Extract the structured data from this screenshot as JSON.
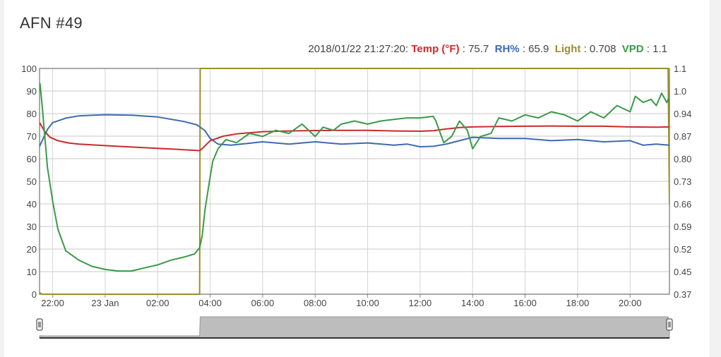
{
  "header": {
    "title": "AFN #49"
  },
  "legend": {
    "timestamp": "2018/01/22 21:27:20:",
    "items": [
      {
        "label": "Temp (°F)",
        "value": "75.7",
        "color": "#cc2a2a"
      },
      {
        "label": "RH%",
        "value": "65.9",
        "color": "#3e6ab0"
      },
      {
        "label": "Light",
        "value": "0.708",
        "color": "#9a8f2a"
      },
      {
        "label": "VPD",
        "value": "1.1",
        "color": "#3a9a48"
      }
    ]
  },
  "chart_data": {
    "type": "line",
    "x_axis": {
      "unit": "hours (22 Jan 21:30 to 23 Jan 21:30)",
      "range": [
        21.5,
        45.5
      ],
      "ticks": [
        {
          "value": 22,
          "label": "22:00"
        },
        {
          "value": 24,
          "label": "23 Jan"
        },
        {
          "value": 26,
          "label": "02:00"
        },
        {
          "value": 28,
          "label": "04:00"
        },
        {
          "value": 30,
          "label": "06:00"
        },
        {
          "value": 32,
          "label": "08:00"
        },
        {
          "value": 34,
          "label": "10:00"
        },
        {
          "value": 36,
          "label": "12:00"
        },
        {
          "value": 38,
          "label": "14:00"
        },
        {
          "value": 40,
          "label": "16:00"
        },
        {
          "value": 42,
          "label": "18:00"
        },
        {
          "value": 44,
          "label": "20:00"
        }
      ]
    },
    "y_left": {
      "range": [
        0,
        100
      ],
      "ticks": [
        "0",
        "10",
        "20",
        "30",
        "40",
        "50",
        "60",
        "70",
        "80",
        "90",
        "100"
      ]
    },
    "y_right": {
      "range": [
        0.37,
        1.1
      ],
      "ticks": [
        "0.37",
        "0.45",
        "0.52",
        "0.59",
        "0.66",
        "0.73",
        "0.80",
        "0.87",
        "0.94",
        "1.0",
        "1.1"
      ]
    },
    "grid": true,
    "series": [
      {
        "name": "Temp (°F)",
        "color": "#cc2a2a",
        "axis": "left",
        "x": [
          21.5,
          21.55,
          21.7,
          21.9,
          22.2,
          22.6,
          23.0,
          24.0,
          25.0,
          26.0,
          27.0,
          27.6,
          27.7,
          28.0,
          28.5,
          29.0,
          30.0,
          31.0,
          32.0,
          33.0,
          34.0,
          35.0,
          36.0,
          36.5,
          37.0,
          37.5,
          38.0,
          39.0,
          40.0,
          41.0,
          42.0,
          43.0,
          44.0,
          45.0,
          45.5
        ],
        "y": [
          76,
          75,
          72,
          69.5,
          68,
          67,
          66.5,
          65.8,
          65.2,
          64.6,
          64,
          63.6,
          64.5,
          68,
          70,
          71,
          72,
          72.3,
          72.5,
          72.6,
          72.6,
          72.3,
          72.2,
          72.4,
          73.2,
          73.8,
          74.1,
          74.3,
          74.4,
          74.5,
          74.4,
          74.4,
          74.1,
          74,
          74.1
        ]
      },
      {
        "name": "RH%",
        "color": "#3e6ab0",
        "axis": "left",
        "x": [
          21.5,
          21.6,
          21.8,
          22.0,
          22.5,
          23.0,
          24.0,
          25.0,
          26.0,
          27.0,
          27.5,
          27.8,
          28.0,
          28.3,
          28.8,
          30.0,
          31.0,
          32.0,
          33.0,
          34.0,
          35.0,
          35.5,
          36.0,
          36.5,
          37.0,
          37.5,
          38.0,
          39.0,
          40.0,
          41.0,
          42.0,
          43.0,
          44.0,
          44.5,
          45.0,
          45.5
        ],
        "y": [
          65.5,
          68,
          73,
          76,
          78,
          79,
          79.5,
          79.3,
          78.5,
          76.5,
          75,
          72.5,
          69,
          66.5,
          66,
          67.5,
          66.5,
          67.5,
          66.5,
          67,
          66,
          66.5,
          65.3,
          65.5,
          66.5,
          68,
          69.5,
          69,
          69,
          68,
          68.5,
          67.5,
          68,
          66,
          66.5,
          66
        ]
      },
      {
        "name": "Light",
        "color": "#9a8f2a",
        "axis": "right",
        "x": [
          21.5,
          21.56,
          21.6,
          27.6,
          27.62,
          45.45,
          45.5
        ],
        "y": [
          0.375,
          0.372,
          0.37,
          0.37,
          1.1,
          1.1,
          0.66
        ]
      },
      {
        "name": "VPD",
        "color": "#3a9a48",
        "axis": "right",
        "x": [
          21.5,
          21.52,
          21.6,
          21.7,
          21.8,
          22.0,
          22.2,
          22.5,
          23.0,
          23.5,
          24.0,
          24.5,
          25.0,
          25.5,
          26.0,
          26.5,
          27.0,
          27.4,
          27.6,
          27.7,
          27.8,
          28.0,
          28.1,
          28.3,
          28.6,
          29.0,
          29.5,
          30.0,
          30.5,
          31.0,
          31.5,
          32.0,
          32.3,
          32.7,
          33.0,
          33.5,
          34.0,
          34.5,
          35.0,
          35.5,
          36.0,
          36.5,
          36.6,
          36.9,
          37.2,
          37.5,
          37.8,
          38.0,
          38.3,
          38.7,
          39.0,
          39.5,
          40.0,
          40.5,
          41.0,
          41.5,
          42.0,
          42.5,
          43.0,
          43.5,
          44.0,
          44.2,
          44.5,
          44.8,
          45.0,
          45.2,
          45.4,
          45.5
        ],
        "y": [
          1.03,
          1.05,
          0.98,
          0.88,
          0.78,
          0.67,
          0.58,
          0.51,
          0.48,
          0.46,
          0.45,
          0.445,
          0.445,
          0.455,
          0.465,
          0.48,
          0.49,
          0.5,
          0.52,
          0.56,
          0.64,
          0.75,
          0.8,
          0.84,
          0.87,
          0.86,
          0.89,
          0.88,
          0.9,
          0.89,
          0.92,
          0.88,
          0.91,
          0.9,
          0.92,
          0.93,
          0.92,
          0.93,
          0.935,
          0.94,
          0.94,
          0.945,
          0.93,
          0.86,
          0.88,
          0.93,
          0.9,
          0.84,
          0.88,
          0.89,
          0.94,
          0.93,
          0.95,
          0.94,
          0.96,
          0.95,
          0.93,
          0.96,
          0.94,
          0.98,
          0.96,
          1.01,
          0.99,
          1.0,
          0.98,
          1.02,
          0.99,
          1.01
        ]
      }
    ]
  },
  "navigator": {
    "range_start": 21.5,
    "range_end": 45.5
  }
}
